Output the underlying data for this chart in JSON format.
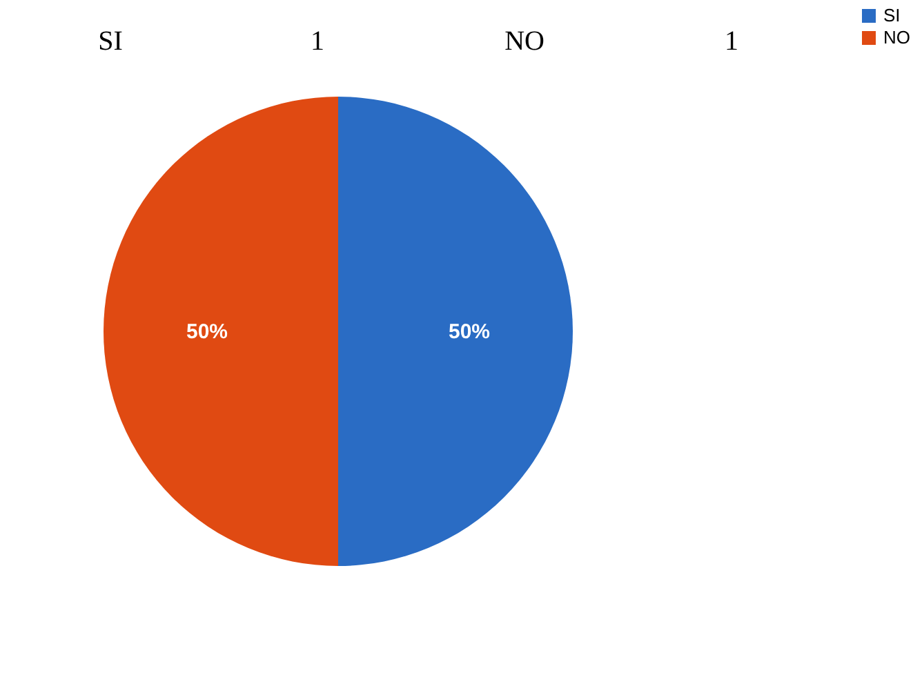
{
  "chart_data": {
    "type": "pie",
    "annotations": [
      "SI",
      "1",
      "NO",
      "1"
    ],
    "categories": [
      "SI",
      "NO"
    ],
    "values": [
      50,
      50
    ],
    "colors": [
      "#2a6cc4",
      "#e04a12"
    ],
    "value_labels": [
      "50%",
      "50%"
    ],
    "legend": "right"
  }
}
